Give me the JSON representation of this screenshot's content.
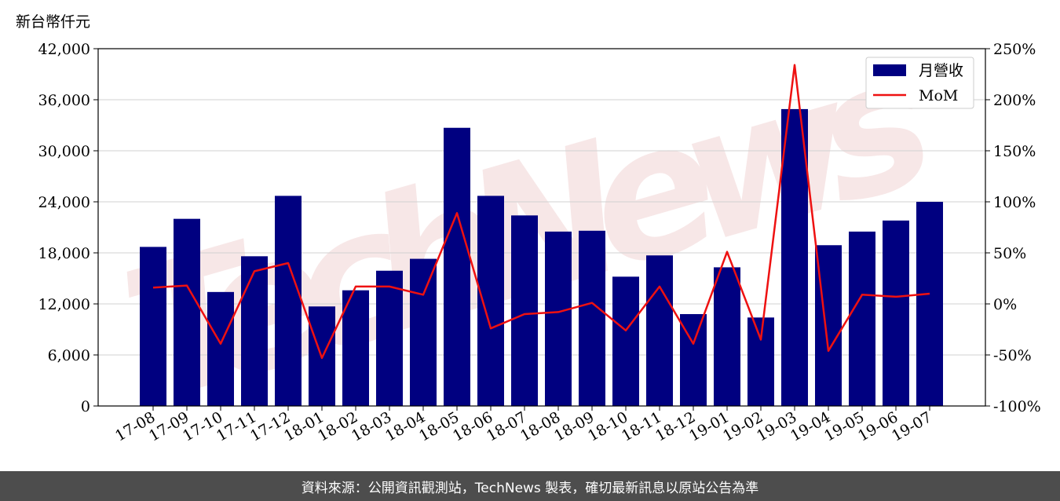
{
  "unit_label": "新台幣仟元",
  "watermark": "TechNews",
  "footer": "資料來源：公開資訊觀測站，TechNews 製表，確切最新訊息以原站公告為準",
  "colors": {
    "bar": "#000080",
    "line": "#ee1111",
    "watermark": "#f2d8d8",
    "footer_bg": "#4d4d4d"
  },
  "chart_data": {
    "type": "bar",
    "categories": [
      "17-08",
      "17-09",
      "17-10",
      "17-11",
      "17-12",
      "18-01",
      "18-02",
      "18-03",
      "18-04",
      "18-05",
      "18-06",
      "18-07",
      "18-08",
      "18-09",
      "18-10",
      "18-11",
      "18-12",
      "19-01",
      "19-02",
      "19-03",
      "19-04",
      "19-05",
      "19-06",
      "19-07"
    ],
    "series": [
      {
        "name": "月營收",
        "type": "bar",
        "axis": "left",
        "values": [
          18700,
          22000,
          13400,
          17600,
          24700,
          11700,
          13600,
          15900,
          17300,
          32700,
          24700,
          22400,
          20500,
          20600,
          15200,
          17700,
          10800,
          16300,
          10400,
          34900,
          18900,
          20500,
          21800,
          24000
        ]
      },
      {
        "name": "MoM",
        "type": "line",
        "axis": "right",
        "values": [
          16,
          18,
          -39,
          32,
          40,
          -53,
          17,
          17,
          9,
          89,
          -24,
          -10,
          -8,
          1,
          -26,
          17,
          -39,
          51,
          -35,
          234,
          -46,
          9,
          7,
          10
        ]
      }
    ],
    "y_left": {
      "min": 0,
      "max": 42000,
      "ticks": [
        "0",
        "6,000",
        "12,000",
        "18,000",
        "24,000",
        "30,000",
        "36,000",
        "42,000"
      ]
    },
    "y_right": {
      "min": -100,
      "max": 250,
      "ticks": [
        "-100%",
        "-50%",
        "0%",
        "50%",
        "100%",
        "150%",
        "200%",
        "250%"
      ]
    },
    "grid": "horizontal",
    "legend_position": "top-right"
  }
}
